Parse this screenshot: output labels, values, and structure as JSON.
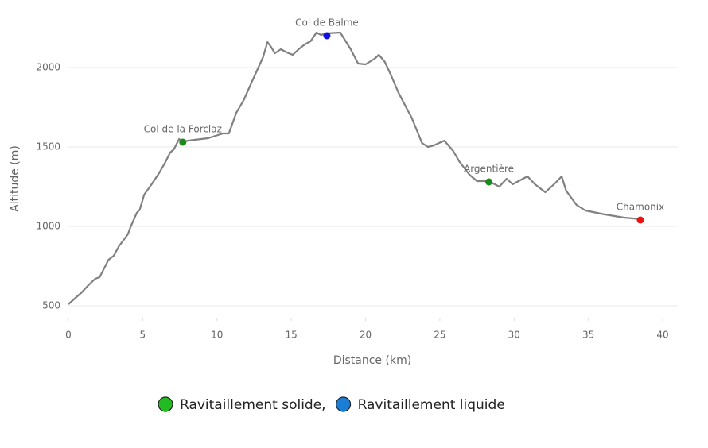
{
  "chart_data": {
    "type": "line",
    "x": [
      0,
      0.9,
      1.3,
      1.8,
      2.1,
      2.7,
      3.05,
      3.4,
      4.0,
      4.2,
      4.6,
      4.8,
      5.1,
      5.6,
      6.1,
      6.5,
      6.85,
      7.1,
      7.45,
      7.7,
      8.5,
      9.4,
      10.4,
      10.8,
      11.3,
      11.8,
      12.3,
      13.1,
      13.4,
      13.6,
      13.9,
      14.3,
      14.7,
      15.1,
      15.5,
      15.9,
      16.3,
      16.7,
      17.0,
      17.4,
      18.3,
      19.0,
      19.5,
      20.0,
      20.6,
      20.9,
      21.3,
      21.7,
      22.2,
      22.7,
      23.1,
      23.8,
      24.2,
      24.6,
      25.3,
      25.9,
      26.3,
      27.0,
      27.5,
      28.3,
      29.0,
      29.5,
      29.9,
      30.9,
      31.4,
      32.1,
      32.8,
      33.2,
      33.5,
      34.2,
      34.8,
      36.1,
      37.4,
      38.6
    ],
    "values": [
      510,
      585,
      625,
      670,
      680,
      790,
      815,
      875,
      950,
      1000,
      1085,
      1105,
      1200,
      1265,
      1335,
      1400,
      1465,
      1485,
      1550,
      1535,
      1545,
      1555,
      1585,
      1585,
      1715,
      1795,
      1900,
      2065,
      2160,
      2135,
      2090,
      2115,
      2095,
      2080,
      2115,
      2145,
      2165,
      2220,
      2205,
      2215,
      2220,
      2115,
      2025,
      2020,
      2055,
      2080,
      2035,
      1955,
      1845,
      1755,
      1685,
      1525,
      1500,
      1510,
      1540,
      1475,
      1410,
      1325,
      1285,
      1285,
      1250,
      1300,
      1265,
      1315,
      1265,
      1215,
      1275,
      1315,
      1225,
      1135,
      1100,
      1075,
      1055,
      1045
    ],
    "color": "#808080",
    "points": [
      {
        "label": "Col de la Forclaz",
        "x": 7.7,
        "y": 1530,
        "color": "#1a8a1a"
      },
      {
        "label": "Col de Balme",
        "x": 17.4,
        "y": 2200,
        "color": "#1010e0"
      },
      {
        "label": "Argentière",
        "x": 28.3,
        "y": 1280,
        "color": "#1a8a1a"
      },
      {
        "label": "Chamonix",
        "x": 38.5,
        "y": 1040,
        "color": "#ee1111"
      }
    ],
    "xlabel": "Distance (km)",
    "ylabel": "Altitude (m)",
    "xlim": [
      0,
      41
    ],
    "ylim": [
      425,
      2250
    ],
    "xticks": [
      0,
      5,
      10,
      15,
      20,
      25,
      30,
      35,
      40
    ],
    "yticks": [
      500,
      1000,
      1500,
      2000
    ],
    "grid": true,
    "legend": [
      {
        "label": "Ravitaillement solide,",
        "color": "#22bb22"
      },
      {
        "label": "Ravitaillement liquide",
        "color": "#1a7fd4"
      }
    ]
  }
}
